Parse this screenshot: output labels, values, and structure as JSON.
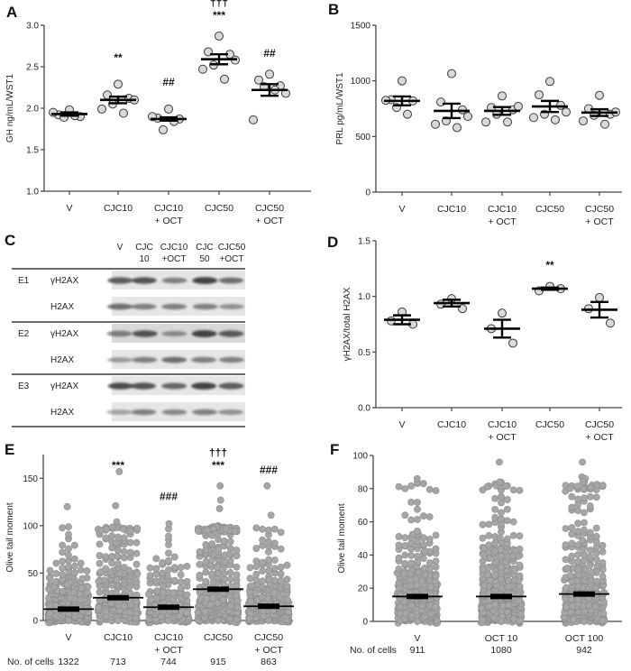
{
  "chart_data": [
    {
      "panel": "A",
      "type": "scatter",
      "ylabel": "GH ng/mL/WST1",
      "ylim": [
        1.0,
        3.0
      ],
      "yticks": [
        "1.0",
        "1.5",
        "2.0",
        "2.5",
        "3.0"
      ],
      "categories": [
        [
          "V"
        ],
        [
          "CJC10"
        ],
        [
          "CJC10",
          "+ OCT"
        ],
        [
          "CJC50"
        ],
        [
          "CJC50",
          "+ OCT"
        ]
      ],
      "points": [
        [
          1.98,
          1.92,
          1.9,
          1.89,
          1.91,
          1.95
        ],
        [
          2.29,
          2.16,
          2.12,
          2.05,
          1.94,
          1.99,
          2.1
        ],
        [
          1.99,
          1.88,
          1.87,
          1.74,
          1.84,
          1.9
        ],
        [
          2.87,
          2.68,
          2.65,
          2.52,
          2.35,
          2.47,
          2.58
        ],
        [
          2.41,
          2.34,
          2.27,
          2.26,
          2.22,
          1.86,
          2.18
        ]
      ],
      "mean": [
        1.93,
        2.1,
        1.87,
        2.59,
        2.22
      ],
      "sem": [
        0.02,
        0.04,
        0.02,
        0.06,
        0.07
      ],
      "annotations": [
        {
          "category": 1,
          "lines": [
            "**"
          ]
        },
        {
          "category": 2,
          "lines": [
            "##"
          ]
        },
        {
          "category": 3,
          "lines": [
            "†††",
            "***"
          ]
        },
        {
          "category": 4,
          "lines": [
            "##"
          ]
        }
      ]
    },
    {
      "panel": "B",
      "type": "scatter",
      "ylabel": "PRL pg/mL/WST1",
      "ylim": [
        0,
        1500
      ],
      "yticks": [
        "0",
        "500",
        "1000",
        "1500"
      ],
      "categories": [
        [
          "V"
        ],
        [
          "CJC10"
        ],
        [
          "CJC10",
          "+ OCT"
        ],
        [
          "CJC50"
        ],
        [
          "CJC50",
          "+ OCT"
        ]
      ],
      "points": [
        [
          1000,
          830,
          820,
          760,
          700,
          825
        ],
        [
          1065,
          810,
          740,
          640,
          580,
          610,
          680
        ],
        [
          865,
          760,
          740,
          700,
          630,
          630,
          770
        ],
        [
          995,
          875,
          780,
          700,
          650,
          670,
          720
        ],
        [
          870,
          750,
          700,
          690,
          610,
          640,
          720
        ]
      ],
      "mean": [
        820,
        730,
        730,
        770,
        715
      ],
      "sem": [
        40,
        65,
        35,
        50,
        30
      ],
      "annotations": []
    },
    {
      "panel": "C",
      "type": "western-blot",
      "lanes": [
        [
          "V"
        ],
        [
          "CJC",
          "10"
        ],
        [
          "CJC10",
          "+OCT"
        ],
        [
          "CJC",
          "50"
        ],
        [
          "CJC50",
          "+OCT"
        ]
      ],
      "experiments": [
        {
          "label": "E1",
          "rows": [
            "γH2AX",
            "H2AX"
          ]
        },
        {
          "label": "E2",
          "rows": [
            "γH2AX",
            "H2AX"
          ]
        },
        {
          "label": "E3",
          "rows": [
            "γH2AX",
            "H2AX"
          ]
        }
      ]
    },
    {
      "panel": "D",
      "type": "scatter",
      "ylabel": "γH2AX/total H2AX",
      "ylim": [
        0.0,
        1.5
      ],
      "yticks": [
        "0.0",
        "0.5",
        "1.0",
        "1.5"
      ],
      "categories": [
        [
          "V"
        ],
        [
          "CJC10"
        ],
        [
          "CJC10",
          "+ OCT"
        ],
        [
          "CJC50"
        ],
        [
          "CJC50",
          "+ OCT"
        ]
      ],
      "points": [
        [
          0.86,
          0.78,
          0.75
        ],
        [
          0.98,
          0.93,
          0.89
        ],
        [
          0.85,
          0.71,
          0.58
        ],
        [
          1.09,
          1.05,
          1.07
        ],
        [
          0.99,
          0.89,
          0.76
        ]
      ],
      "mean": [
        0.79,
        0.94,
        0.71,
        1.07,
        0.88
      ],
      "sem": [
        0.04,
        0.03,
        0.08,
        0.01,
        0.07
      ],
      "annotations": [
        {
          "category": 3,
          "lines": [
            "**"
          ]
        }
      ]
    },
    {
      "panel": "E",
      "type": "scatter",
      "ylabel": "Olive tail moment",
      "ylim": [
        0,
        175
      ],
      "yticks": [
        "0",
        "50",
        "100",
        "150"
      ],
      "categories": [
        [
          "V"
        ],
        [
          "CJC10"
        ],
        [
          "CJC10",
          "+ OCT"
        ],
        [
          "CJC50"
        ],
        [
          "CJC50",
          "+ OCT"
        ]
      ],
      "median": [
        12,
        24,
        14,
        33,
        15
      ],
      "max_bulk": 100,
      "outliers": [
        [
          120
        ],
        [
          157,
          121,
          104
        ],
        [
          102
        ],
        [
          142,
          127,
          118
        ],
        [
          142,
          111
        ]
      ],
      "cells_label": "No. of cells",
      "n_cells": [
        "1322",
        "713",
        "744",
        "915",
        "863"
      ],
      "annotations": [
        {
          "category": 1,
          "lines": [
            "***"
          ]
        },
        {
          "category": 2,
          "lines": [
            "###"
          ]
        },
        {
          "category": 3,
          "lines": [
            "†††",
            "***"
          ]
        },
        {
          "category": 4,
          "lines": [
            "###"
          ]
        }
      ]
    },
    {
      "panel": "F",
      "type": "scatter",
      "ylabel": "Olive tail moment",
      "ylim": [
        0,
        100
      ],
      "yticks": [
        "0",
        "20",
        "40",
        "60",
        "80",
        "100"
      ],
      "categories": [
        [
          "V"
        ],
        [
          "OCT 10"
        ],
        [
          "OCT 100"
        ]
      ],
      "median": [
        15,
        15,
        16.5
      ],
      "max_bulk": 84,
      "outliers": [
        [
          86
        ],
        [
          96,
          84
        ],
        [
          96,
          87,
          86,
          84
        ]
      ],
      "cells_label": "No. of cells",
      "n_cells": [
        "911",
        "1080",
        "942"
      ],
      "annotations": []
    }
  ],
  "colors": {
    "dot_light": "#d9d9d9",
    "dot_gray": "#a6a6a6",
    "dot_outline": "#3a3a3a",
    "axis": "#444444",
    "mean_bar": "#000000"
  }
}
